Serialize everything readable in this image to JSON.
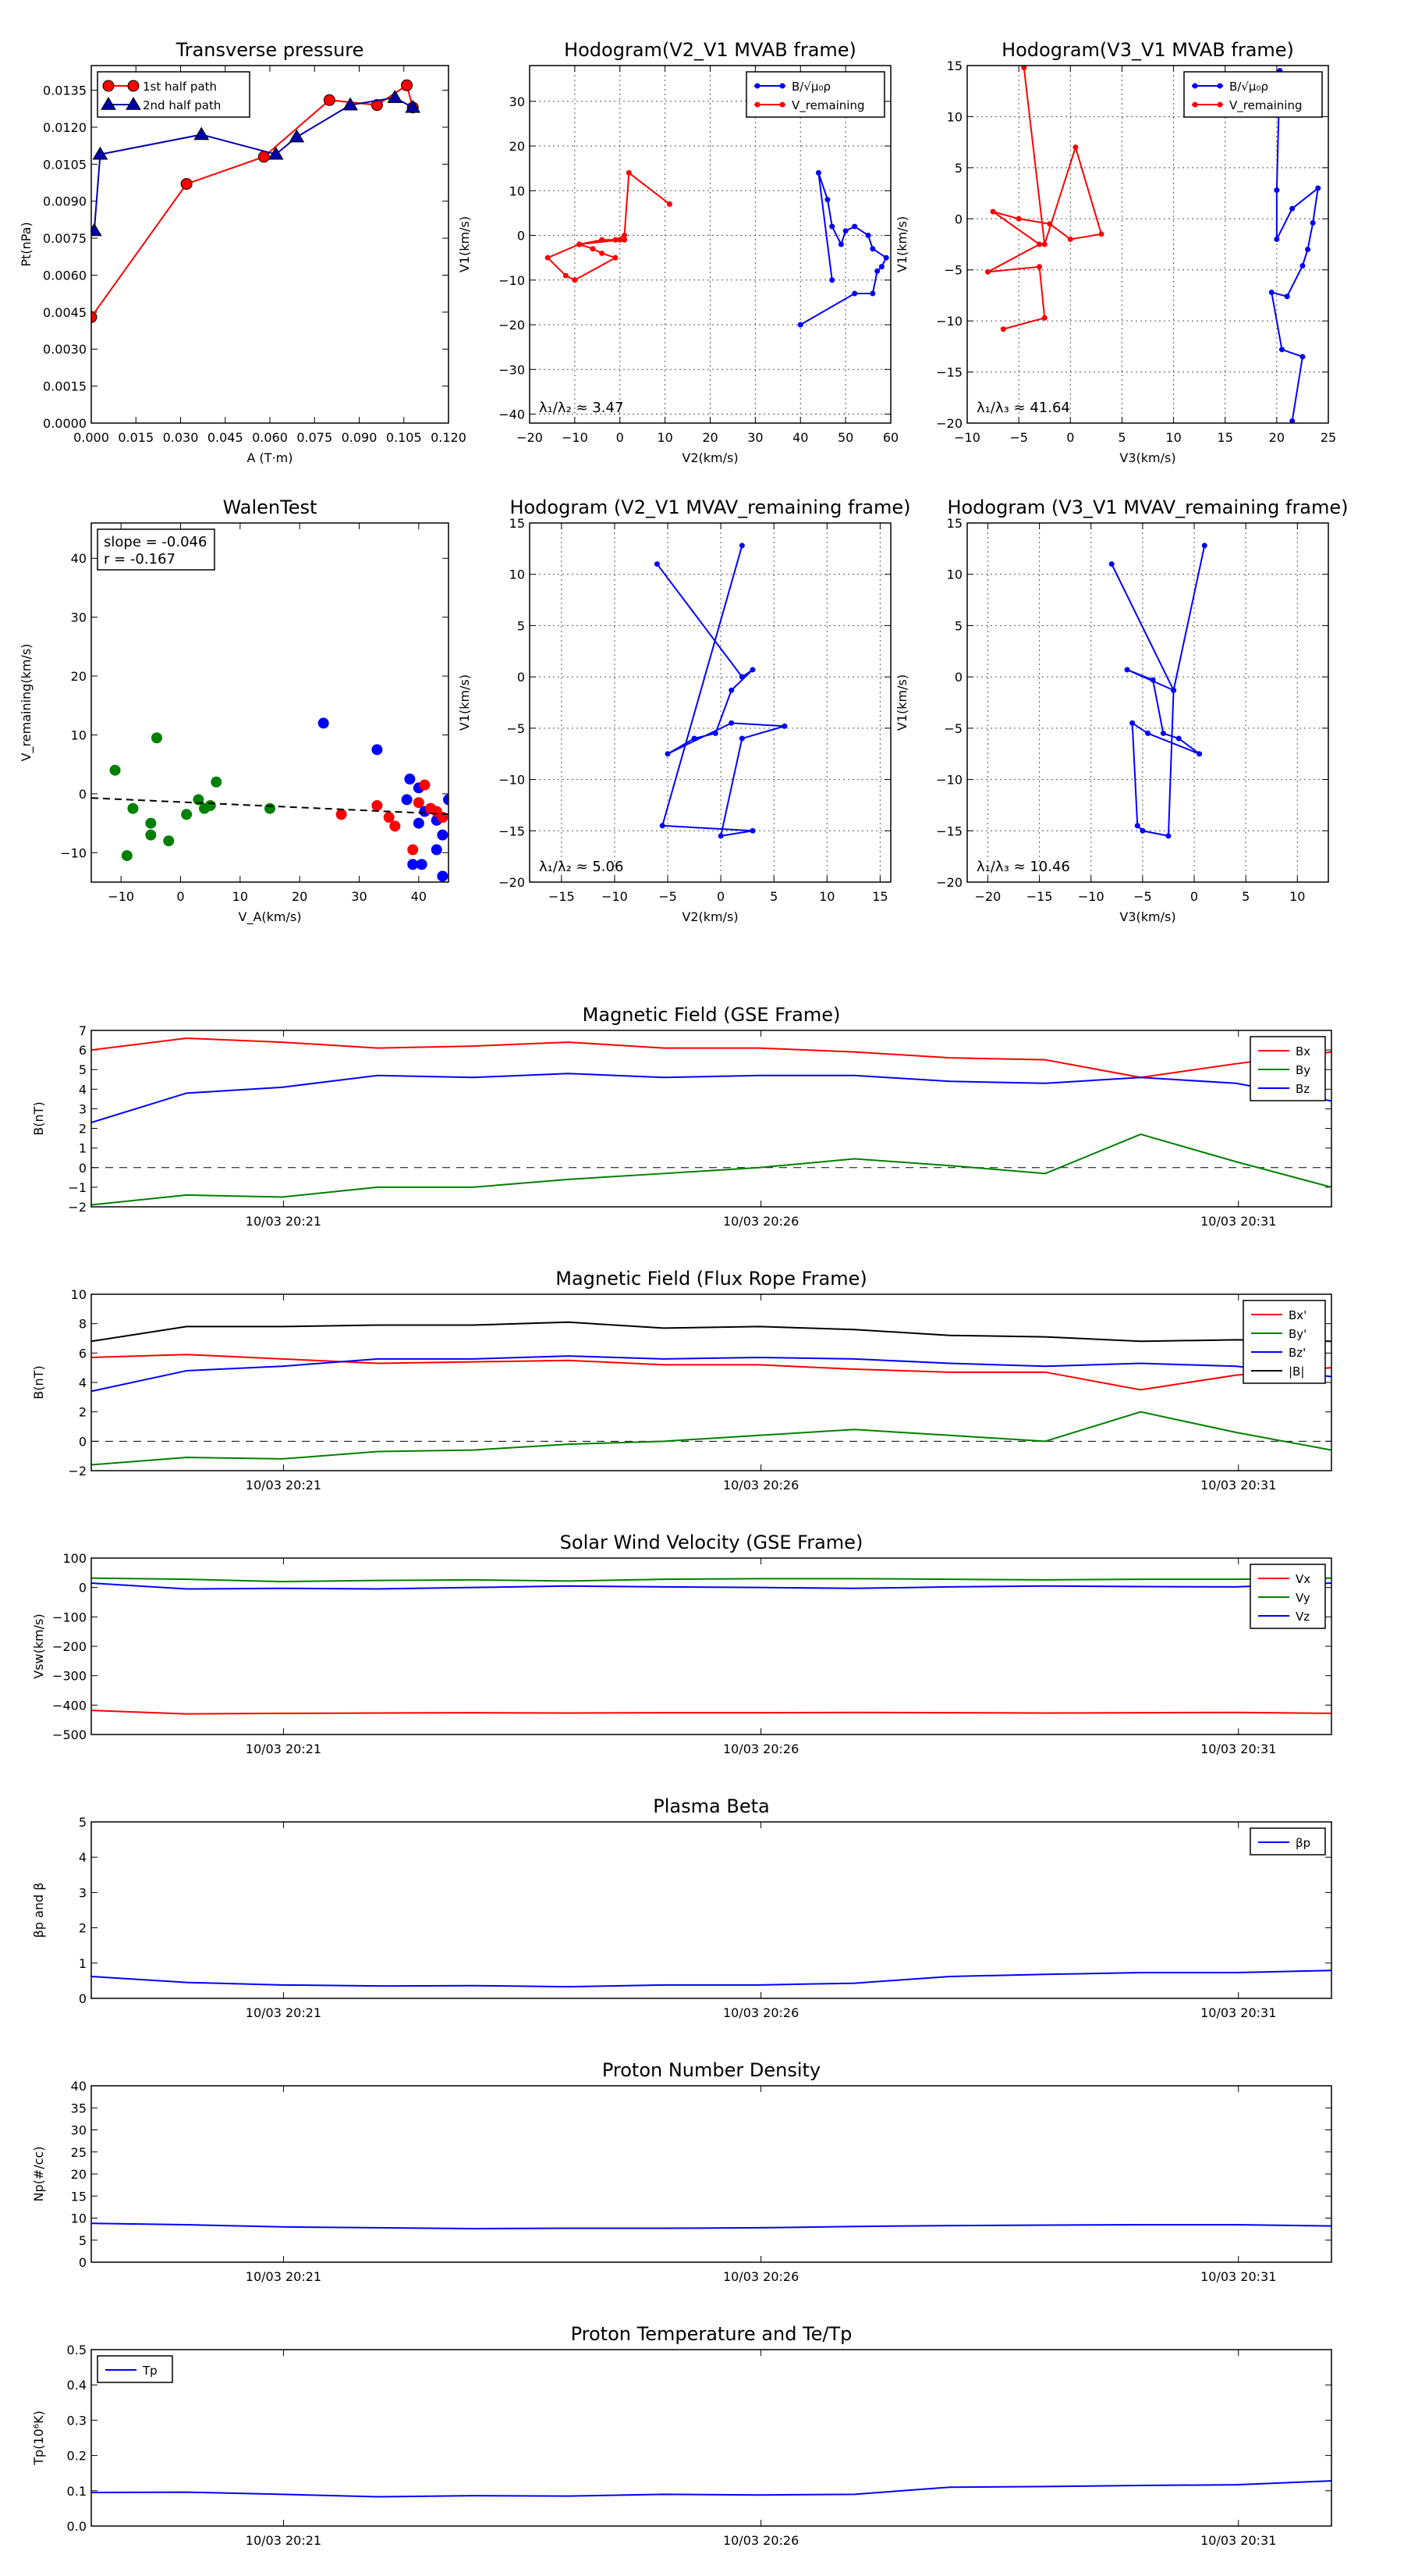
{
  "chart_data": [
    {
      "type": "scatter",
      "title": "Transverse pressure",
      "xlabel": "A (T·m)",
      "ylabel": "Pt(nPa)",
      "xlim": [
        0.0,
        0.12
      ],
      "ylim": [
        0.0,
        0.0145
      ],
      "xticks": [
        "0.000",
        "0.015",
        "0.030",
        "0.045",
        "0.060",
        "0.075",
        "0.090",
        "0.105",
        "0.120"
      ],
      "yticks": [
        "0.0000",
        "0.0015",
        "0.0030",
        "0.0045",
        "0.0060",
        "0.0075",
        "0.0090",
        "0.0105",
        "0.0120",
        "0.0135"
      ],
      "grid": false,
      "legend": "top-left",
      "series": [
        {
          "name": "1st half path",
          "color": "#ff0000",
          "marker": "circle",
          "x": [
            0.0,
            0.032,
            0.058,
            0.08,
            0.096,
            0.106,
            0.108
          ],
          "y": [
            0.0043,
            0.0097,
            0.0108,
            0.0131,
            0.0129,
            0.0137,
            0.0128
          ]
        },
        {
          "name": "2nd half path",
          "color": "#0000aa",
          "marker": "triangle",
          "x": [
            0.108,
            0.102,
            0.087,
            0.069,
            0.062,
            0.037,
            0.003,
            0.001
          ],
          "y": [
            0.0128,
            0.0132,
            0.0129,
            0.0116,
            0.0109,
            0.0117,
            0.0109,
            0.0078
          ]
        }
      ]
    },
    {
      "type": "line",
      "title": "Hodogram(V2_V1 MVAB frame)",
      "xlabel": "V2(km/s)",
      "ylabel": "V1(km/s)",
      "xlim": [
        -20,
        60
      ],
      "ylim": [
        -42,
        38
      ],
      "xticks": [
        "−20",
        "−10",
        "0",
        "10",
        "20",
        "30",
        "40",
        "50",
        "60"
      ],
      "yticks": [
        "−40",
        "−30",
        "−20",
        "−10",
        "0",
        "10",
        "20",
        "30"
      ],
      "grid": true,
      "legend": "top-right",
      "annotation": "λ₁/λ₂ ≈ 3.47",
      "series": [
        {
          "name": "B/√μ₀ρ",
          "color": "#0000ff",
          "x": [
            40,
            52,
            56,
            57,
            58,
            59,
            56,
            55,
            52,
            50,
            49,
            47,
            46,
            44,
            47
          ],
          "y": [
            -20,
            -13,
            -13,
            -8,
            -7,
            -5,
            -3,
            0,
            2,
            1,
            -2,
            2,
            8,
            14,
            -10
          ]
        },
        {
          "name": "V_remaining",
          "color": "#ff0000",
          "x": [
            1,
            -4,
            -9,
            -16,
            -12,
            -10,
            -1,
            -4,
            -6,
            -9,
            0,
            -1,
            1,
            2,
            11
          ],
          "y": [
            -1,
            -1,
            -2,
            -5,
            -9,
            -10,
            -5,
            -4,
            -3,
            -2,
            -1,
            -1,
            0,
            14,
            7
          ]
        }
      ]
    },
    {
      "type": "line",
      "title": "Hodogram(V3_V1 MVAB frame)",
      "xlabel": "V3(km/s)",
      "ylabel": "V1(km/s)",
      "xlim": [
        -10,
        25
      ],
      "ylim": [
        -20,
        15
      ],
      "xticks": [
        "−10",
        "−5",
        "0",
        "5",
        "10",
        "15",
        "20",
        "25"
      ],
      "yticks": [
        "−20",
        "−15",
        "−10",
        "−5",
        "0",
        "5",
        "10",
        "15"
      ],
      "grid": true,
      "legend": "top-right",
      "annotation": "λ₁/λ₃ ≈ 41.64",
      "series": [
        {
          "name": "B/√μ₀ρ",
          "color": "#0000ff",
          "x": [
            21.5,
            22.5,
            20.5,
            19.5,
            21,
            22.5,
            23,
            23.5,
            24,
            21.5,
            20,
            20,
            20.3
          ],
          "y": [
            -19.8,
            -13.5,
            -12.8,
            -7.2,
            -7.6,
            -4.6,
            -3,
            -0.4,
            3,
            1,
            -2,
            2.8,
            14.5
          ]
        },
        {
          "name": "V_remaining",
          "color": "#ff0000",
          "x": [
            -6.5,
            -2.5,
            -3,
            -8,
            -3,
            -7.5,
            -5,
            -2,
            0,
            3,
            0.5,
            -2.5,
            -4.5
          ],
          "y": [
            -10.8,
            -9.7,
            -4.7,
            -5.2,
            -2.5,
            0.7,
            0,
            -0.5,
            -2,
            -1.5,
            7,
            -2.5,
            14.8
          ]
        }
      ]
    },
    {
      "type": "scatter",
      "title": "WalenTest",
      "xlabel": "V_A(km/s)",
      "ylabel": "V_remaining(km/s)",
      "xlim": [
        -15,
        45
      ],
      "ylim": [
        -15,
        46
      ],
      "xticks": [
        "−10",
        "0",
        "10",
        "20",
        "30",
        "40"
      ],
      "yticks": [
        "−10",
        "0",
        "10",
        "20",
        "30",
        "40"
      ],
      "grid": false,
      "annotation_lines": [
        "slope = -0.046",
        "r = -0.167"
      ],
      "fit": {
        "slope": -0.046,
        "intercept": -1.4
      },
      "series": [
        {
          "name": "",
          "color": "#008000",
          "x": [
            -11,
            -8,
            -9,
            -5,
            -5,
            -4,
            -2,
            1,
            3,
            4,
            5,
            6,
            15
          ],
          "y": [
            4,
            -2.5,
            -10.5,
            -5,
            -7,
            9.5,
            -8,
            -3.5,
            -1,
            -2.5,
            -2,
            2,
            -2.5
          ]
        },
        {
          "name": "",
          "color": "#0000ff",
          "x": [
            24,
            33,
            38,
            38.5,
            39,
            40,
            40,
            40.5,
            41,
            42,
            43,
            43,
            44,
            44,
            45
          ],
          "y": [
            12,
            7.5,
            -1,
            2.5,
            -12,
            1,
            -5,
            -12,
            -3,
            -2.5,
            -4.5,
            -9.5,
            -14,
            -7,
            -1
          ]
        },
        {
          "name": "",
          "color": "#ff0000",
          "x": [
            27,
            33,
            35,
            36,
            39,
            40,
            41,
            42,
            43,
            44
          ],
          "y": [
            -3.5,
            -2,
            -4,
            -5.5,
            -9.5,
            -1.5,
            1.5,
            -2.5,
            -3,
            -4
          ]
        }
      ]
    },
    {
      "type": "line",
      "title": "Hodogram (V2_V1 MVAV_remaining frame)",
      "xlabel": "V2(km/s)",
      "ylabel": "V1(km/s)",
      "xlim": [
        -18,
        16
      ],
      "ylim": [
        -20,
        15
      ],
      "xticks": [
        "−15",
        "−10",
        "−5",
        "0",
        "5",
        "10",
        "15"
      ],
      "yticks": [
        "−20",
        "−15",
        "−10",
        "−5",
        "0",
        "5",
        "10",
        "15"
      ],
      "grid": true,
      "annotation": "λ₁/λ₂ ≈ 5.06",
      "series": [
        {
          "name": "",
          "color": "#0000ff",
          "x": [
            2,
            -5.5,
            3,
            0,
            2,
            6,
            1,
            -5,
            -2.5,
            -0.5,
            1,
            3,
            2,
            -6
          ],
          "y": [
            12.8,
            -14.5,
            -15,
            -15.5,
            -6,
            -4.8,
            -4.5,
            -7.5,
            -6,
            -5.5,
            -1.3,
            0.7,
            0,
            11
          ]
        }
      ]
    },
    {
      "type": "line",
      "title": "Hodogram (V3_V1 MVAV_remaining frame)",
      "xlabel": "V3(km/s)",
      "ylabel": "V1(km/s)",
      "xlim": [
        -22,
        13
      ],
      "ylim": [
        -20,
        15
      ],
      "xticks": [
        "−20",
        "−15",
        "−10",
        "−5",
        "0",
        "5",
        "10"
      ],
      "yticks": [
        "−20",
        "−15",
        "−10",
        "−5",
        "0",
        "5",
        "10",
        "15"
      ],
      "grid": true,
      "annotation": "λ₁/λ₃ ≈ 10.46",
      "series": [
        {
          "name": "",
          "color": "#0000ff",
          "x": [
            1,
            -2,
            -2.5,
            -5,
            -5.5,
            -6,
            -4.5,
            0.5,
            -1.5,
            -3,
            -4,
            -6.5,
            -2,
            -8
          ],
          "y": [
            12.8,
            -1.3,
            -15.5,
            -15,
            -14.5,
            -4.5,
            -5.5,
            -7.5,
            -6,
            -5.5,
            -0.3,
            0.7,
            -1.3,
            11
          ]
        }
      ]
    },
    {
      "type": "line",
      "title": "Magnetic Field (GSE Frame)",
      "xlabel": "",
      "ylabel": "B(nT)",
      "ylim": [
        -2,
        7
      ],
      "yticks": [
        "−2",
        "−1",
        "0",
        "1",
        "2",
        "3",
        "4",
        "5",
        "6",
        "7"
      ],
      "xtick_labels": [
        "10/03 20:21",
        "10/03 20:26",
        "10/03 20:31"
      ],
      "legend": "top-right",
      "zero_line": true,
      "series": [
        {
          "name": "Bx",
          "color": "#ff0000",
          "values": [
            6.0,
            6.6,
            6.4,
            6.1,
            6.2,
            6.4,
            6.1,
            6.1,
            5.9,
            5.6,
            5.5,
            4.6,
            5.3,
            5.9
          ]
        },
        {
          "name": "By",
          "color": "#008000",
          "values": [
            -1.9,
            -1.4,
            -1.5,
            -1.0,
            -1.0,
            -0.6,
            -0.3,
            0.0,
            0.45,
            0.1,
            -0.3,
            1.7,
            0.3,
            -1.0
          ]
        },
        {
          "name": "Bz",
          "color": "#0000ff",
          "values": [
            2.3,
            3.8,
            4.1,
            4.7,
            4.6,
            4.8,
            4.6,
            4.7,
            4.7,
            4.4,
            4.3,
            4.6,
            4.3,
            3.4
          ]
        }
      ]
    },
    {
      "type": "line",
      "title": "Magnetic Field (Flux Rope Frame)",
      "xlabel": "",
      "ylabel": "B(nT)",
      "ylim": [
        -2,
        10
      ],
      "yticks": [
        "−2",
        "0",
        "2",
        "4",
        "6",
        "8",
        "10"
      ],
      "xtick_labels": [
        "10/03 20:21",
        "10/03 20:26",
        "10/03 20:31"
      ],
      "legend": "top-right",
      "zero_line": true,
      "series": [
        {
          "name": "Bx'",
          "color": "#ff0000",
          "values": [
            5.7,
            5.9,
            5.6,
            5.3,
            5.4,
            5.5,
            5.2,
            5.2,
            4.9,
            4.7,
            4.7,
            3.5,
            4.5,
            5.0
          ]
        },
        {
          "name": "By'",
          "color": "#008000",
          "values": [
            -1.6,
            -1.1,
            -1.2,
            -0.7,
            -0.6,
            -0.2,
            0.0,
            0.4,
            0.8,
            0.4,
            0.0,
            2.0,
            0.6,
            -0.6
          ]
        },
        {
          "name": "Bz'",
          "color": "#0000ff",
          "values": [
            3.4,
            4.8,
            5.1,
            5.6,
            5.6,
            5.8,
            5.6,
            5.7,
            5.6,
            5.3,
            5.1,
            5.3,
            5.1,
            4.4
          ]
        },
        {
          "name": "|B|",
          "color": "#000000",
          "values": [
            6.8,
            7.8,
            7.8,
            7.9,
            7.9,
            8.1,
            7.7,
            7.8,
            7.6,
            7.2,
            7.1,
            6.8,
            6.9,
            6.8
          ]
        }
      ]
    },
    {
      "type": "line",
      "title": "Solar Wind Velocity (GSE Frame)",
      "xlabel": "",
      "ylabel": "Vsw(km/s)",
      "ylim": [
        -500,
        100
      ],
      "yticks": [
        "−500",
        "−400",
        "−300",
        "−200",
        "−100",
        "0",
        "100"
      ],
      "xtick_labels": [
        "10/03 20:21",
        "10/03 20:26",
        "10/03 20:31"
      ],
      "legend": "top-right",
      "series": [
        {
          "name": "Vx",
          "color": "#ff0000",
          "values": [
            -418,
            -430,
            -428,
            -427,
            -426,
            -427,
            -426,
            -426,
            -425,
            -426,
            -427,
            -426,
            -425,
            -428
          ]
        },
        {
          "name": "Vy",
          "color": "#008000",
          "values": [
            32,
            28,
            20,
            24,
            26,
            22,
            28,
            30,
            30,
            28,
            26,
            28,
            28,
            32
          ]
        },
        {
          "name": "Vz",
          "color": "#0000ff",
          "values": [
            15,
            -5,
            -3,
            -5,
            0,
            5,
            2,
            0,
            -3,
            2,
            5,
            3,
            2,
            15
          ]
        }
      ]
    },
    {
      "type": "line",
      "title": "Plasma Beta",
      "xlabel": "",
      "ylabel": "βp and β",
      "ylim": [
        0,
        5
      ],
      "yticks": [
        "0",
        "1",
        "2",
        "3",
        "4",
        "5"
      ],
      "xtick_labels": [
        "10/03 20:21",
        "10/03 20:26",
        "10/03 20:31"
      ],
      "legend": "top-right",
      "series": [
        {
          "name": "βp",
          "color": "#0000ff",
          "values": [
            0.62,
            0.45,
            0.38,
            0.35,
            0.36,
            0.33,
            0.38,
            0.38,
            0.43,
            0.62,
            0.68,
            0.73,
            0.73,
            0.79
          ]
        }
      ]
    },
    {
      "type": "line",
      "title": "Proton Number Density",
      "xlabel": "",
      "ylabel": "Np(#/cc)",
      "ylim": [
        0,
        40
      ],
      "yticks": [
        "0",
        "5",
        "10",
        "15",
        "20",
        "25",
        "30",
        "35",
        "40"
      ],
      "xtick_labels": [
        "10/03 20:21",
        "10/03 20:26",
        "10/03 20:31"
      ],
      "series": [
        {
          "name": "",
          "color": "#0000ff",
          "values": [
            8.8,
            8.5,
            8.0,
            7.8,
            7.6,
            7.7,
            7.7,
            7.8,
            8.1,
            8.3,
            8.4,
            8.5,
            8.5,
            8.2
          ]
        }
      ]
    },
    {
      "type": "line",
      "title": "Proton Temperature and Te/Tp",
      "xlabel": "",
      "ylabel": "Tp(10⁶K)",
      "ylim": [
        0,
        0.5
      ],
      "yticks": [
        "0.0",
        "0.1",
        "0.2",
        "0.3",
        "0.4",
        "0.5"
      ],
      "xtick_labels": [
        "10/03 20:21",
        "10/03 20:26",
        "10/03 20:31"
      ],
      "legend": "top-left",
      "series": [
        {
          "name": "Tp",
          "color": "#0000ff",
          "values": [
            0.095,
            0.096,
            0.09,
            0.083,
            0.086,
            0.085,
            0.09,
            0.088,
            0.09,
            0.11,
            0.112,
            0.115,
            0.117,
            0.128
          ]
        }
      ]
    }
  ]
}
